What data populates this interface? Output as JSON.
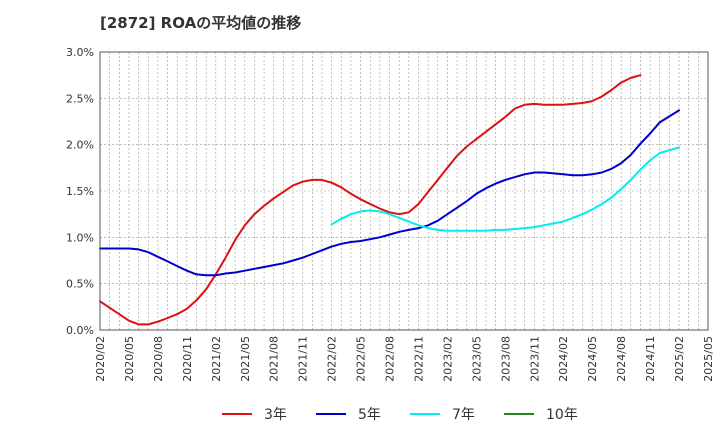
{
  "chart_data": {
    "type": "line",
    "title": "[2872]  ROAの平均値の推移",
    "xlabel": "",
    "ylabel": "",
    "x_ticks": [
      "2020/02",
      "2020/05",
      "2020/08",
      "2020/11",
      "2021/02",
      "2021/05",
      "2021/08",
      "2021/11",
      "2022/02",
      "2022/05",
      "2022/08",
      "2022/11",
      "2023/02",
      "2023/05",
      "2023/08",
      "2023/11",
      "2024/02",
      "2024/05",
      "2024/08",
      "2024/11",
      "2025/02",
      "2025/05"
    ],
    "y_ticks": [
      "0.0%",
      "0.5%",
      "1.0%",
      "1.5%",
      "2.0%",
      "2.5%",
      "3.0%"
    ],
    "ylim": [
      0,
      3.0
    ],
    "x_range": [
      "2020/02",
      "2025/05"
    ],
    "grid": true,
    "legend_position": "bottom",
    "series": [
      {
        "name": "3年",
        "color": "#dd1111",
        "points": [
          [
            "2020/02",
            0.31
          ],
          [
            "2020/03",
            0.24
          ],
          [
            "2020/04",
            0.17
          ],
          [
            "2020/05",
            0.1
          ],
          [
            "2020/06",
            0.06
          ],
          [
            "2020/07",
            0.06
          ],
          [
            "2020/08",
            0.09
          ],
          [
            "2020/09",
            0.13
          ],
          [
            "2020/10",
            0.17
          ],
          [
            "2020/11",
            0.23
          ],
          [
            "2020/12",
            0.32
          ],
          [
            "2021/01",
            0.44
          ],
          [
            "2021/02",
            0.6
          ],
          [
            "2021/03",
            0.78
          ],
          [
            "2021/04",
            0.97
          ],
          [
            "2021/05",
            1.13
          ],
          [
            "2021/06",
            1.25
          ],
          [
            "2021/07",
            1.34
          ],
          [
            "2021/08",
            1.42
          ],
          [
            "2021/09",
            1.49
          ],
          [
            "2021/10",
            1.56
          ],
          [
            "2021/11",
            1.6
          ],
          [
            "2021/12",
            1.62
          ],
          [
            "2022/01",
            1.62
          ],
          [
            "2022/02",
            1.59
          ],
          [
            "2022/03",
            1.54
          ],
          [
            "2022/04",
            1.47
          ],
          [
            "2022/05",
            1.41
          ],
          [
            "2022/06",
            1.36
          ],
          [
            "2022/07",
            1.31
          ],
          [
            "2022/08",
            1.27
          ],
          [
            "2022/09",
            1.25
          ],
          [
            "2022/10",
            1.27
          ],
          [
            "2022/11",
            1.36
          ],
          [
            "2022/12",
            1.49
          ],
          [
            "2023/01",
            1.62
          ],
          [
            "2023/02",
            1.75
          ],
          [
            "2023/03",
            1.88
          ],
          [
            "2023/04",
            1.98
          ],
          [
            "2023/05",
            2.06
          ],
          [
            "2023/06",
            2.14
          ],
          [
            "2023/07",
            2.22
          ],
          [
            "2023/08",
            2.3
          ],
          [
            "2023/09",
            2.39
          ],
          [
            "2023/10",
            2.43
          ],
          [
            "2023/11",
            2.44
          ],
          [
            "2023/12",
            2.43
          ],
          [
            "2024/01",
            2.43
          ],
          [
            "2024/02",
            2.43
          ],
          [
            "2024/03",
            2.44
          ],
          [
            "2024/04",
            2.45
          ],
          [
            "2024/05",
            2.47
          ],
          [
            "2024/06",
            2.52
          ],
          [
            "2024/07",
            2.59
          ],
          [
            "2024/08",
            2.67
          ],
          [
            "2024/09",
            2.72
          ],
          [
            "2024/10",
            2.75
          ]
        ]
      },
      {
        "name": "5年",
        "color": "#0000cc",
        "points": [
          [
            "2020/02",
            0.88
          ],
          [
            "2020/03",
            0.88
          ],
          [
            "2020/04",
            0.88
          ],
          [
            "2020/05",
            0.88
          ],
          [
            "2020/06",
            0.87
          ],
          [
            "2020/07",
            0.84
          ],
          [
            "2020/08",
            0.79
          ],
          [
            "2020/09",
            0.74
          ],
          [
            "2020/10",
            0.69
          ],
          [
            "2020/11",
            0.64
          ],
          [
            "2020/12",
            0.6
          ],
          [
            "2021/01",
            0.59
          ],
          [
            "2021/02",
            0.59
          ],
          [
            "2021/03",
            0.61
          ],
          [
            "2021/04",
            0.62
          ],
          [
            "2021/05",
            0.64
          ],
          [
            "2021/06",
            0.66
          ],
          [
            "2021/07",
            0.68
          ],
          [
            "2021/08",
            0.7
          ],
          [
            "2021/09",
            0.72
          ],
          [
            "2021/10",
            0.75
          ],
          [
            "2021/11",
            0.78
          ],
          [
            "2021/12",
            0.82
          ],
          [
            "2022/01",
            0.86
          ],
          [
            "2022/02",
            0.9
          ],
          [
            "2022/03",
            0.93
          ],
          [
            "2022/04",
            0.95
          ],
          [
            "2022/05",
            0.96
          ],
          [
            "2022/06",
            0.98
          ],
          [
            "2022/07",
            1.0
          ],
          [
            "2022/08",
            1.03
          ],
          [
            "2022/09",
            1.06
          ],
          [
            "2022/10",
            1.08
          ],
          [
            "2022/11",
            1.1
          ],
          [
            "2022/12",
            1.13
          ],
          [
            "2023/01",
            1.18
          ],
          [
            "2023/02",
            1.25
          ],
          [
            "2023/03",
            1.32
          ],
          [
            "2023/04",
            1.39
          ],
          [
            "2023/05",
            1.47
          ],
          [
            "2023/06",
            1.53
          ],
          [
            "2023/07",
            1.58
          ],
          [
            "2023/08",
            1.62
          ],
          [
            "2023/09",
            1.65
          ],
          [
            "2023/10",
            1.68
          ],
          [
            "2023/11",
            1.7
          ],
          [
            "2023/12",
            1.7
          ],
          [
            "2024/01",
            1.69
          ],
          [
            "2024/02",
            1.68
          ],
          [
            "2024/03",
            1.67
          ],
          [
            "2024/04",
            1.67
          ],
          [
            "2024/05",
            1.68
          ],
          [
            "2024/06",
            1.7
          ],
          [
            "2024/07",
            1.74
          ],
          [
            "2024/08",
            1.8
          ],
          [
            "2024/09",
            1.89
          ],
          [
            "2024/10",
            2.01
          ],
          [
            "2024/11",
            2.12
          ],
          [
            "2024/12",
            2.24
          ],
          [
            "2025/02",
            2.37
          ]
        ]
      },
      {
        "name": "7年",
        "color": "#00eeee",
        "points": [
          [
            "2022/02",
            1.14
          ],
          [
            "2022/03",
            1.2
          ],
          [
            "2022/04",
            1.25
          ],
          [
            "2022/05",
            1.28
          ],
          [
            "2022/06",
            1.29
          ],
          [
            "2022/07",
            1.28
          ],
          [
            "2022/08",
            1.25
          ],
          [
            "2022/09",
            1.21
          ],
          [
            "2022/10",
            1.17
          ],
          [
            "2022/11",
            1.13
          ],
          [
            "2022/12",
            1.1
          ],
          [
            "2023/01",
            1.08
          ],
          [
            "2023/02",
            1.07
          ],
          [
            "2023/03",
            1.07
          ],
          [
            "2023/04",
            1.07
          ],
          [
            "2023/05",
            1.07
          ],
          [
            "2023/06",
            1.07
          ],
          [
            "2023/07",
            1.08
          ],
          [
            "2023/08",
            1.08
          ],
          [
            "2023/09",
            1.09
          ],
          [
            "2023/10",
            1.1
          ],
          [
            "2023/11",
            1.11
          ],
          [
            "2023/12",
            1.13
          ],
          [
            "2024/01",
            1.15
          ],
          [
            "2024/02",
            1.17
          ],
          [
            "2024/03",
            1.21
          ],
          [
            "2024/04",
            1.25
          ],
          [
            "2024/05",
            1.3
          ],
          [
            "2024/06",
            1.36
          ],
          [
            "2024/07",
            1.43
          ],
          [
            "2024/08",
            1.52
          ],
          [
            "2024/09",
            1.62
          ],
          [
            "2024/10",
            1.73
          ],
          [
            "2024/11",
            1.83
          ],
          [
            "2024/12",
            1.91
          ],
          [
            "2025/02",
            1.97
          ]
        ]
      },
      {
        "name": "10年",
        "color": "#228822",
        "points": []
      }
    ]
  }
}
